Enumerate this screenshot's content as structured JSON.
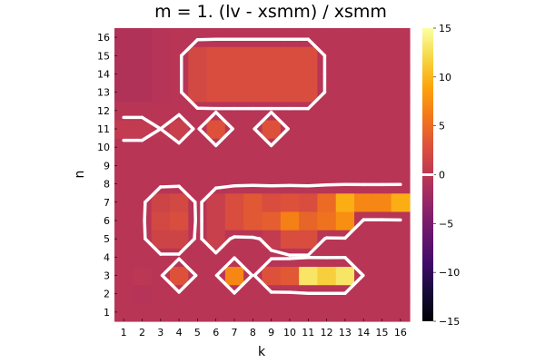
{
  "chart_data": {
    "type": "heatmap",
    "title": "m = 1. (lv - xsmm) / xsmm",
    "xlabel": "k",
    "ylabel": "n",
    "x_ticks": [
      "1",
      "2",
      "3",
      "4",
      "5",
      "6",
      "7",
      "8",
      "9",
      "10",
      "11",
      "12",
      "13",
      "14",
      "15",
      "16"
    ],
    "y_ticks": [
      "1",
      "2",
      "3",
      "4",
      "5",
      "6",
      "7",
      "8",
      "9",
      "10",
      "11",
      "12",
      "13",
      "14",
      "15",
      "16"
    ],
    "colorbar": {
      "range": [
        -15,
        15
      ],
      "ticks": [
        -15,
        -10,
        -5,
        0,
        5,
        10,
        15
      ],
      "tick_labels": [
        "−15",
        "−10",
        "−5",
        "0",
        "5",
        "10",
        "15"
      ],
      "colormap": "inferno",
      "contour_level": 0
    },
    "contour_color": "#ffffff",
    "grid": false,
    "note_rows": "values[i] is row n = i+1, columns k = 1..16",
    "values": [
      [
        -0.3,
        -0.3,
        -0.3,
        -0.3,
        -0.3,
        -0.3,
        -0.3,
        -0.3,
        -0.3,
        -0.3,
        -0.3,
        -0.3,
        -0.3,
        -0.3,
        -0.3,
        -0.3
      ],
      [
        -0.3,
        -0.5,
        -0.3,
        -0.3,
        -0.3,
        -0.3,
        -0.3,
        -0.3,
        -0.3,
        -0.3,
        -0.3,
        -0.3,
        -0.3,
        -0.3,
        -0.3,
        -0.3
      ],
      [
        -0.3,
        0.0,
        -0.3,
        3.0,
        -0.3,
        -0.3,
        7.0,
        -0.3,
        3.0,
        3.5,
        13.0,
        11.5,
        13.0,
        -0.3,
        -0.3,
        -0.3
      ],
      [
        -0.3,
        -0.3,
        -0.3,
        -0.3,
        -0.3,
        -0.3,
        -0.3,
        -0.3,
        -0.3,
        -0.3,
        -0.3,
        -0.3,
        -0.3,
        -0.3,
        -0.3,
        -0.3
      ],
      [
        -0.3,
        -0.3,
        1.5,
        1.5,
        -0.3,
        1.0,
        -0.3,
        -0.3,
        0.5,
        2.5,
        2.5,
        -0.3,
        -0.3,
        -0.3,
        -0.3,
        -0.3
      ],
      [
        -0.3,
        -0.3,
        2.0,
        2.5,
        -0.3,
        1.0,
        2.5,
        3.5,
        4.0,
        6.5,
        4.5,
        5.5,
        7.5,
        -0.3,
        -0.3,
        -0.3
      ],
      [
        -0.3,
        -0.3,
        1.5,
        2.0,
        -0.3,
        1.0,
        2.5,
        3.5,
        2.5,
        3.0,
        2.5,
        5.0,
        9.5,
        7.0,
        7.0,
        9.5
      ],
      [
        -0.3,
        -0.3,
        -0.3,
        -0.3,
        -0.3,
        -0.3,
        -0.3,
        -0.3,
        -0.3,
        -0.3,
        -0.3,
        -0.3,
        -0.3,
        -0.3,
        -0.3,
        -0.3
      ],
      [
        -0.3,
        -0.3,
        -0.3,
        -0.3,
        -0.3,
        -0.3,
        -0.3,
        -0.3,
        -0.3,
        -0.3,
        -0.3,
        -0.3,
        -0.3,
        -0.3,
        -0.3,
        -0.3
      ],
      [
        -0.3,
        -0.3,
        -0.3,
        -0.3,
        -0.3,
        -0.3,
        -0.3,
        -0.3,
        -0.3,
        -0.3,
        -0.3,
        -0.3,
        -0.3,
        -0.3,
        -0.3,
        -0.3
      ],
      [
        0.5,
        0.5,
        0.0,
        1.0,
        -0.3,
        3.0,
        -0.3,
        -0.3,
        3.0,
        -0.3,
        -0.3,
        -0.3,
        -0.3,
        -0.3,
        -0.3,
        -0.3
      ],
      [
        -0.3,
        -0.3,
        -0.3,
        -0.3,
        -0.3,
        -0.3,
        -0.3,
        -0.3,
        -0.3,
        -0.3,
        -0.3,
        -0.3,
        -0.3,
        -0.3,
        -0.3,
        -0.3
      ],
      [
        -0.8,
        -0.8,
        -0.5,
        -0.3,
        2.0,
        2.5,
        2.5,
        2.5,
        2.5,
        2.5,
        2.5,
        -0.3,
        -0.3,
        -0.3,
        -0.3,
        -0.3
      ],
      [
        -0.8,
        -0.8,
        -0.5,
        -0.3,
        2.0,
        2.5,
        2.5,
        2.5,
        2.5,
        2.5,
        2.5,
        -0.3,
        -0.3,
        -0.3,
        -0.3,
        -0.3
      ],
      [
        -0.8,
        -0.8,
        -0.5,
        -0.3,
        2.0,
        2.5,
        2.5,
        2.5,
        2.5,
        2.5,
        2.5,
        -0.3,
        -0.3,
        -0.3,
        -0.3,
        -0.3
      ],
      [
        -0.8,
        -0.8,
        -0.5,
        -0.3,
        -0.3,
        -0.3,
        -0.3,
        -0.3,
        -0.3,
        -0.3,
        -0.3,
        -0.3,
        -0.3,
        -0.3,
        -0.3,
        -0.3
      ]
    ]
  }
}
